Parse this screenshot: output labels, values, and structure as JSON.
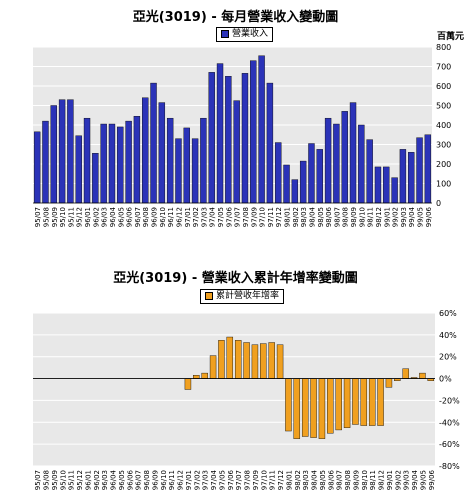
{
  "charts": {
    "top": {
      "title": "亞光(3019) - 每月營業收入變動圖",
      "legend": "營業收入",
      "unit": "百萬元",
      "bar_color": "#2b33b8",
      "plot_bg": "#e8e8e8"
    },
    "bottom": {
      "title": "亞光(3019) -  營業收入累計年增率變動圖",
      "legend": "累計營收年增率",
      "bar_color": "#f0a020",
      "plot_bg": "#e8e8e8"
    }
  },
  "chart_data": [
    {
      "type": "bar",
      "title": "亞光(3019) - 每月營業收入變動圖",
      "ylabel": "百萬元",
      "ylim": [
        0,
        800
      ],
      "yticks": [
        0,
        100,
        200,
        300,
        400,
        500,
        600,
        700,
        800
      ],
      "grid": true,
      "legend_position": "top-center",
      "categories": [
        "95/07",
        "95/08",
        "95/09",
        "95/10",
        "95/11",
        "95/12",
        "96/01",
        "96/02",
        "96/03",
        "96/04",
        "96/05",
        "96/06",
        "96/07",
        "96/08",
        "96/09",
        "96/10",
        "96/11",
        "96/12",
        "97/01",
        "97/02",
        "97/03",
        "97/04",
        "97/05",
        "97/06",
        "97/07",
        "97/08",
        "97/09",
        "97/10",
        "97/11",
        "97/12",
        "98/01",
        "98/02",
        "98/03",
        "98/04",
        "98/05",
        "98/06",
        "98/07",
        "98/08",
        "98/09",
        "98/10",
        "98/11",
        "98/12",
        "99/01",
        "99/02",
        "99/03",
        "99/04",
        "99/05",
        "99/06"
      ],
      "series": [
        {
          "name": "營業收入",
          "values": [
            365,
            420,
            500,
            530,
            530,
            345,
            435,
            255,
            405,
            405,
            390,
            420,
            445,
            540,
            615,
            515,
            435,
            330,
            385,
            330,
            435,
            670,
            715,
            650,
            525,
            665,
            730,
            755,
            615,
            310,
            195,
            120,
            215,
            305,
            275,
            435,
            405,
            470,
            515,
            400,
            325,
            185,
            185,
            130,
            275,
            260,
            335,
            350
          ]
        }
      ]
    },
    {
      "type": "bar",
      "title": "亞光(3019) -  營業收入累計年增率變動圖",
      "ylim": [
        -80,
        60
      ],
      "yticks": [
        -80,
        -60,
        -40,
        -20,
        0,
        20,
        40,
        60
      ],
      "ytick_suffix": "%",
      "grid": true,
      "legend_position": "top-center",
      "categories": [
        "95/07",
        "95/08",
        "95/09",
        "95/10",
        "95/11",
        "95/12",
        "96/01",
        "96/02",
        "96/03",
        "96/04",
        "96/05",
        "96/06",
        "96/07",
        "96/08",
        "96/09",
        "96/10",
        "96/11",
        "96/12",
        "97/01",
        "97/02",
        "97/03",
        "97/04",
        "97/05",
        "97/06",
        "97/07",
        "97/08",
        "97/09",
        "97/10",
        "97/11",
        "97/12",
        "98/01",
        "98/02",
        "98/03",
        "98/04",
        "98/05",
        "98/06",
        "98/07",
        "98/08",
        "98/09",
        "98/10",
        "98/11",
        "98/12",
        "99/01",
        "99/02",
        "99/03",
        "99/04",
        "99/05",
        "99/06"
      ],
      "series": [
        {
          "name": "累計營收年增率",
          "values": [
            0,
            0,
            0,
            0,
            0,
            0,
            0,
            0,
            0,
            0,
            0,
            0,
            0,
            0,
            0,
            0,
            0,
            0,
            -10,
            3,
            5,
            21,
            35,
            38,
            35,
            33,
            31,
            32,
            33,
            31,
            -48,
            -55,
            -53,
            -54,
            -55,
            -50,
            -47,
            -45,
            -42,
            -43,
            -43,
            -43,
            -8,
            -2,
            9,
            1,
            5,
            -2
          ]
        }
      ]
    }
  ]
}
